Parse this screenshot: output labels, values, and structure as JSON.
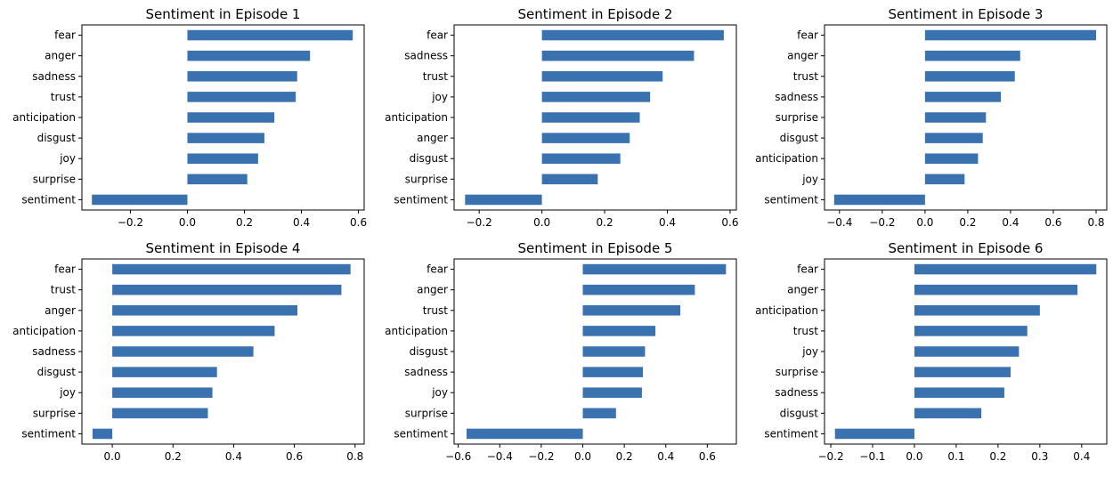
{
  "chart_data": [
    {
      "type": "bar",
      "orientation": "horizontal",
      "title": "Sentiment in Episode 1",
      "categories": [
        "fear",
        "anger",
        "sadness",
        "trust",
        "anticipation",
        "disgust",
        "joy",
        "surprise",
        "sentiment"
      ],
      "values": [
        0.58,
        0.43,
        0.385,
        0.38,
        0.305,
        0.27,
        0.248,
        0.21,
        -0.335
      ],
      "xlim": [
        -0.37,
        0.62
      ],
      "xticks": [
        -0.2,
        0.0,
        0.2,
        0.4,
        0.6
      ],
      "xtick_labels": [
        "−0.2",
        "0.0",
        "0.2",
        "0.4",
        "0.6"
      ],
      "bar_color": "#3a72b0"
    },
    {
      "type": "bar",
      "orientation": "horizontal",
      "title": "Sentiment in Episode 2",
      "categories": [
        "fear",
        "sadness",
        "trust",
        "joy",
        "anticipation",
        "anger",
        "disgust",
        "surprise",
        "sentiment"
      ],
      "values": [
        0.58,
        0.485,
        0.385,
        0.345,
        0.312,
        0.28,
        0.25,
        0.178,
        -0.245
      ],
      "xlim": [
        -0.28,
        0.62
      ],
      "xticks": [
        -0.2,
        0.0,
        0.2,
        0.4,
        0.6
      ],
      "xtick_labels": [
        "−0.2",
        "0.0",
        "0.2",
        "0.4",
        "0.6"
      ],
      "bar_color": "#3a72b0"
    },
    {
      "type": "bar",
      "orientation": "horizontal",
      "title": "Sentiment in Episode 3",
      "categories": [
        "fear",
        "anger",
        "trust",
        "sadness",
        "surprise",
        "disgust",
        "anticipation",
        "joy",
        "sentiment"
      ],
      "values": [
        0.8,
        0.445,
        0.42,
        0.355,
        0.285,
        0.27,
        0.248,
        0.185,
        -0.425
      ],
      "xlim": [
        -0.47,
        0.85
      ],
      "xticks": [
        -0.4,
        -0.2,
        0.0,
        0.2,
        0.4,
        0.6,
        0.8
      ],
      "xtick_labels": [
        "−0.4",
        "−0.2",
        "0.0",
        "0.2",
        "0.4",
        "0.6",
        "0.8"
      ],
      "bar_color": "#3a72b0"
    },
    {
      "type": "bar",
      "orientation": "horizontal",
      "title": "Sentiment in Episode 4",
      "categories": [
        "fear",
        "trust",
        "anger",
        "anticipation",
        "sadness",
        "disgust",
        "joy",
        "surprise",
        "sentiment"
      ],
      "values": [
        0.785,
        0.755,
        0.61,
        0.535,
        0.465,
        0.345,
        0.33,
        0.315,
        -0.065
      ],
      "xlim": [
        -0.1,
        0.83
      ],
      "xticks": [
        0.0,
        0.2,
        0.4,
        0.6,
        0.8
      ],
      "xtick_labels": [
        "0.0",
        "0.2",
        "0.4",
        "0.6",
        "0.8"
      ],
      "bar_color": "#3a72b0"
    },
    {
      "type": "bar",
      "orientation": "horizontal",
      "title": "Sentiment in Episode 5",
      "categories": [
        "fear",
        "anger",
        "trust",
        "anticipation",
        "disgust",
        "sadness",
        "joy",
        "surprise",
        "sentiment"
      ],
      "values": [
        0.69,
        0.54,
        0.47,
        0.35,
        0.3,
        0.29,
        0.285,
        0.16,
        -0.56
      ],
      "xlim": [
        -0.62,
        0.74
      ],
      "xticks": [
        -0.6,
        -0.4,
        -0.2,
        0.0,
        0.2,
        0.4,
        0.6
      ],
      "xtick_labels": [
        "−0.6",
        "−0.4",
        "−0.2",
        "0.0",
        "0.2",
        "0.4",
        "0.6"
      ],
      "bar_color": "#3a72b0"
    },
    {
      "type": "bar",
      "orientation": "horizontal",
      "title": "Sentiment in Episode 6",
      "categories": [
        "fear",
        "anger",
        "anticipation",
        "trust",
        "joy",
        "surprise",
        "sadness",
        "disgust",
        "sentiment"
      ],
      "values": [
        0.435,
        0.39,
        0.3,
        0.27,
        0.25,
        0.23,
        0.215,
        0.16,
        -0.19
      ],
      "xlim": [
        -0.215,
        0.46
      ],
      "xticks": [
        -0.2,
        -0.1,
        0.0,
        0.1,
        0.2,
        0.3,
        0.4
      ],
      "xtick_labels": [
        "−0.2",
        "−0.1",
        "0.0",
        "0.1",
        "0.2",
        "0.3",
        "0.4"
      ],
      "bar_color": "#3a72b0"
    }
  ]
}
